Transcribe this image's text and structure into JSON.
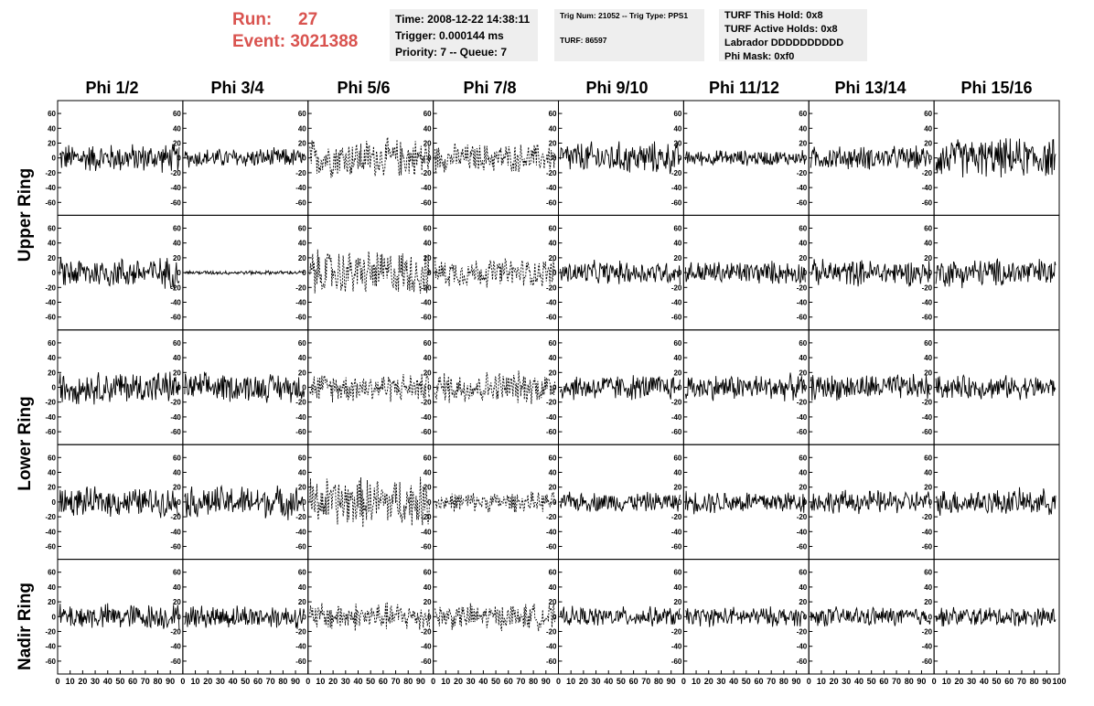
{
  "header": {
    "run_label": "Run:",
    "run_value": "27",
    "event_label": "Event:",
    "event_value": "3021388"
  },
  "info_time": {
    "line1": "Time: 2008-12-22 14:38:11",
    "line2": "Trigger: 0.000144 ms",
    "line3": "Priority: 7 -- Queue: 7"
  },
  "info_trig": {
    "line1": "Trig Num: 21052 -- Trig Type: PPS1",
    "line2": "TURF: 86597"
  },
  "info_turf": {
    "line1": "TURF This Hold: 0x8",
    "line2": "TURF Active Holds: 0x8",
    "line3": "Labrador DDDDDDDDDD",
    "line4": "Phi Mask: 0xf0"
  },
  "columns": [
    "Phi 1/2",
    "Phi 3/4",
    "Phi 5/6",
    "Phi 7/8",
    "Phi 9/10",
    "Phi 11/12",
    "Phi 13/14",
    "Phi 15/16"
  ],
  "rows": [
    "Upper Ring",
    "Lower Ring",
    "Nadir Ring"
  ],
  "colors": {
    "trace": "#000000",
    "run_text": "#d9534f",
    "info_bg": "#eeeeee"
  },
  "chart_data": {
    "type": "line",
    "panel_rows": 5,
    "panel_cols": 8,
    "xlim": [
      0,
      100
    ],
    "ylim": [
      -65,
      65
    ],
    "x_ticks": [
      "0",
      "10",
      "20",
      "30",
      "40",
      "50",
      "60",
      "70",
      "80",
      "90",
      "100"
    ],
    "y_ticks": [
      "60",
      "40",
      "20",
      "0",
      "-20",
      "-40",
      "-60"
    ],
    "dashed_columns": [
      2,
      3
    ],
    "amplitude": [
      [
        22,
        15,
        30,
        22,
        25,
        12,
        18,
        30
      ],
      [
        24,
        3,
        35,
        22,
        18,
        18,
        20,
        22
      ],
      [
        25,
        22,
        22,
        25,
        20,
        20,
        20,
        18
      ],
      [
        22,
        25,
        38,
        15,
        15,
        18,
        18,
        20
      ],
      [
        20,
        18,
        22,
        20,
        15,
        15,
        15,
        15
      ]
    ]
  }
}
